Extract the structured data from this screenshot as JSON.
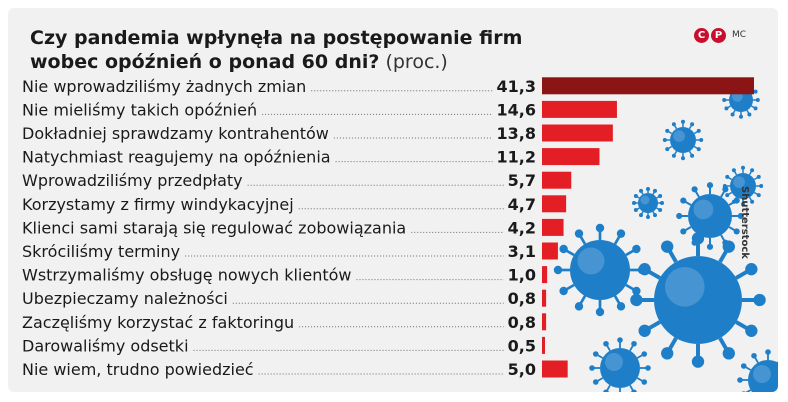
{
  "header": {
    "title_bold": "Czy pandemia wpłynęła na postępowanie firm wobec opóźnień o ponad 60 dni?",
    "title_unit": "(proc.)"
  },
  "brand": {
    "logo_c": "C",
    "logo_p": "P",
    "logo_mc": "MC"
  },
  "credit": "Shutterstock",
  "colors": {
    "bar_top": "#8b1414",
    "bar": "#e31e24",
    "virus": "#1e7ec8"
  },
  "chart_data": {
    "type": "bar",
    "orientation": "horizontal",
    "title": "Czy pandemia wpłynęła na postępowanie firm wobec opóźnień o ponad 60 dni? (proc.)",
    "categories": [
      "Nie wprowadziliśmy żadnych zmian",
      "Nie mieliśmy takich opóźnień",
      "Dokładniej sprawdzamy kontrahentów",
      "Natychmiast reagujemy na opóźnienia",
      "Wprowadziliśmy przedpłaty",
      "Korzystamy z firmy windykacyjnej",
      "Klienci sami starają się regulować zobowiązania",
      "Skróciliśmy terminy",
      "Wstrzymaliśmy obsługę nowych klientów",
      "Ubezpieczamy należności",
      "Zaczęliśmy korzystać z faktoringu",
      "Darowaliśmy odsetki",
      "Nie wiem, trudno powiedzieć"
    ],
    "values": [
      41.3,
      14.6,
      13.8,
      11.2,
      5.7,
      4.7,
      4.2,
      3.1,
      1.0,
      0.8,
      0.8,
      0.5,
      5.0
    ],
    "value_labels": [
      "41,3",
      "14,6",
      "13,8",
      "11,2",
      "5,7",
      "4,7",
      "4,2",
      "3,1",
      "1,0",
      "0,8",
      "0,8",
      "0,5",
      "5,0"
    ],
    "xlim": [
      0,
      41.3
    ],
    "grid": false,
    "legend": "none"
  }
}
